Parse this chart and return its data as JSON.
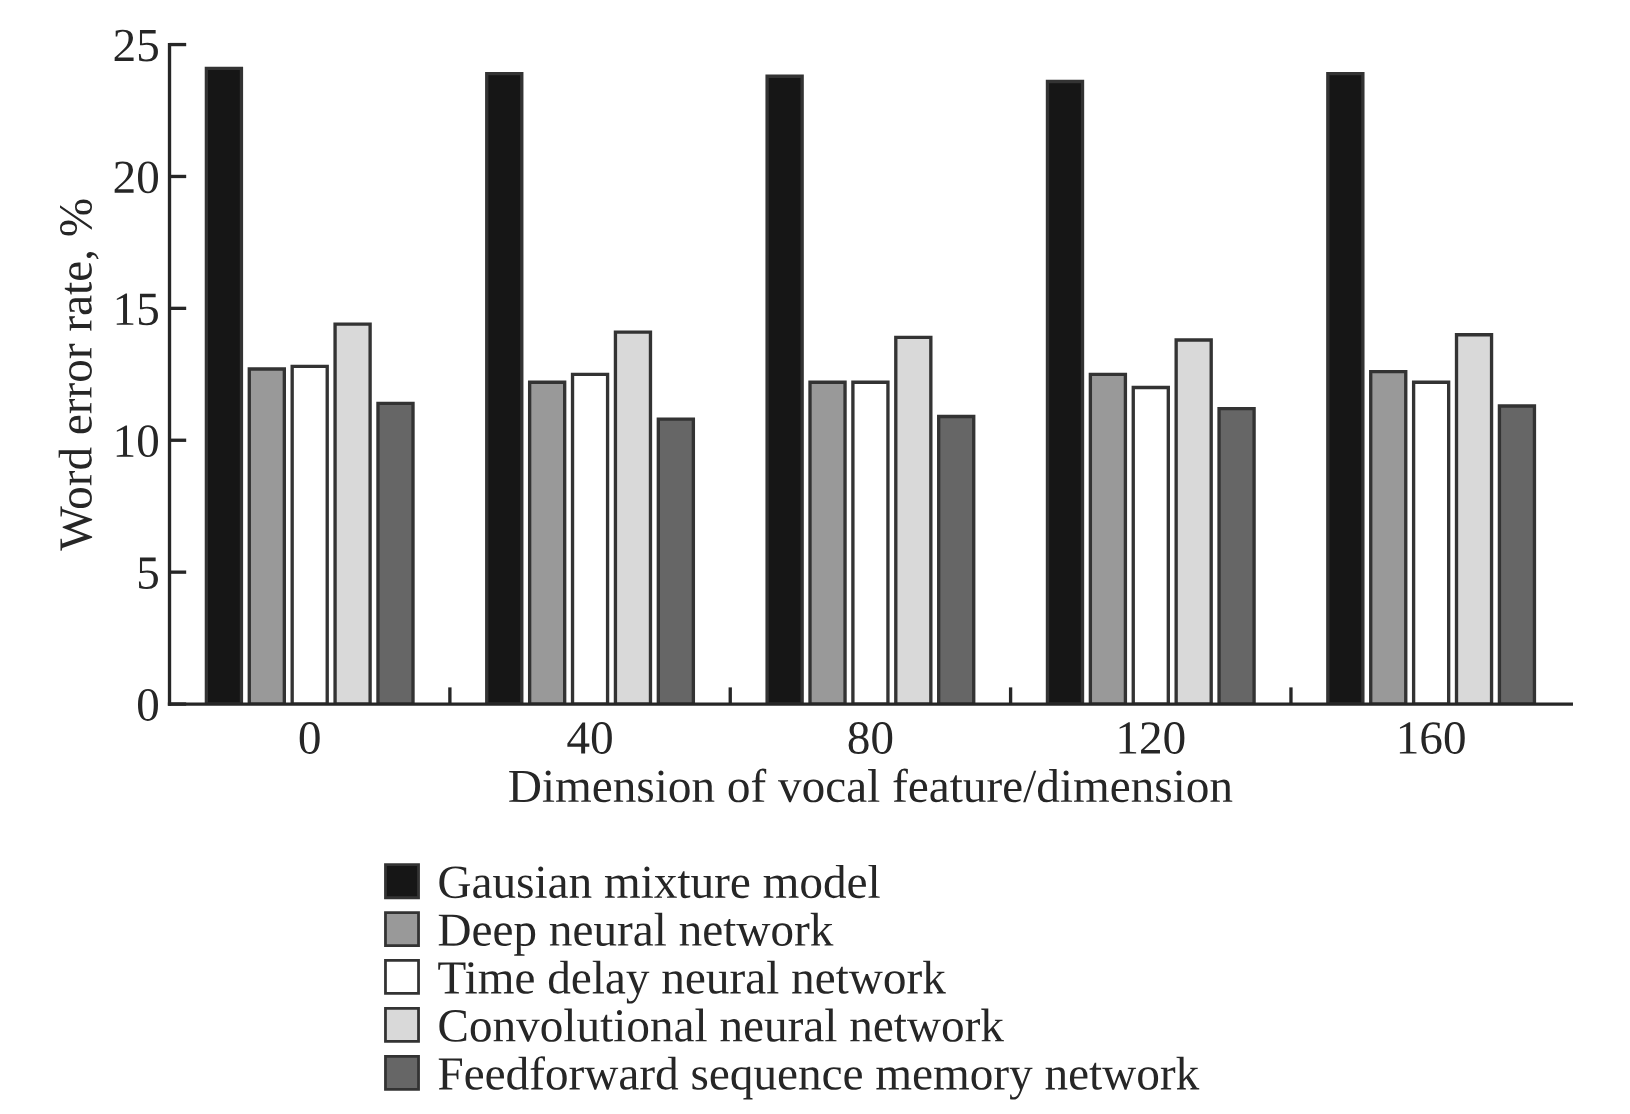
{
  "chart_data": {
    "type": "bar",
    "xlabel": "Dimension of vocal feature/dimension",
    "ylabel": "Word error rate, %",
    "categories": [
      "0",
      "40",
      "80",
      "120",
      "160"
    ],
    "series": [
      {
        "name": "Gausian mixture model",
        "color": "#161616",
        "values": [
          24.1,
          23.9,
          23.8,
          23.6,
          23.9
        ]
      },
      {
        "name": "Deep neural network",
        "color": "#999999",
        "values": [
          12.7,
          12.2,
          12.2,
          12.5,
          12.6
        ]
      },
      {
        "name": "Time delay neural network",
        "color": "#ffffff",
        "values": [
          12.8,
          12.5,
          12.2,
          12.0,
          12.2
        ]
      },
      {
        "name": "Convolutional neural network",
        "color": "#d9d9d9",
        "values": [
          14.4,
          14.1,
          13.9,
          13.8,
          14.0
        ]
      },
      {
        "name": "Feedforward sequence memory network",
        "color": "#666666",
        "values": [
          11.4,
          10.8,
          10.9,
          11.2,
          11.3
        ]
      }
    ],
    "ylim": [
      0,
      25
    ],
    "yticks": [
      0,
      5,
      10,
      15,
      20,
      25
    ],
    "legend": "bottom"
  }
}
